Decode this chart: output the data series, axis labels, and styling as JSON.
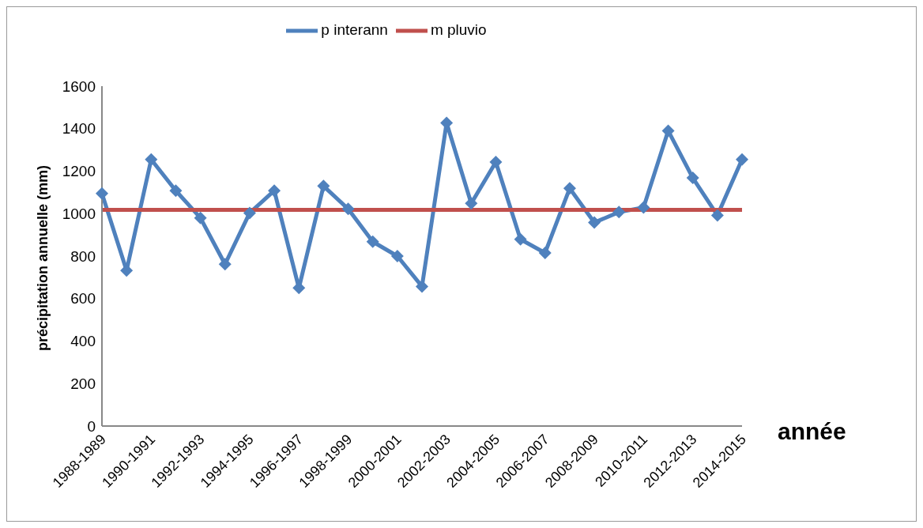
{
  "chart_data": {
    "type": "line",
    "xlabel": "année",
    "ylabel": "précipitation annuelle (mm)",
    "categories": [
      "1988-1989",
      null,
      "1990-1991",
      null,
      "1992-1993",
      null,
      "1994-1995",
      null,
      "1996-1997",
      null,
      "1998-1999",
      null,
      "2000-2001",
      null,
      "2002-2003",
      null,
      "2004-2005",
      null,
      "2006-2007",
      null,
      "2008-2009",
      null,
      "2010-2011",
      null,
      "2012-2013",
      null,
      "2014-2015"
    ],
    "series": [
      {
        "name": "p interann",
        "color": "#4f81bd",
        "marker": "diamond",
        "values": [
          1095,
          732,
          1255,
          1108,
          980,
          762,
          1003,
          1108,
          650,
          1130,
          1022,
          868,
          800,
          657,
          1427,
          1048,
          1243,
          879,
          815,
          1119,
          958,
          1007,
          1029,
          1390,
          1168,
          992,
          1255
        ]
      },
      {
        "name": "m pluvio",
        "color": "#c0504d",
        "marker": "none",
        "values": [
          1018,
          1018,
          1018,
          1018,
          1018,
          1018,
          1018,
          1018,
          1018,
          1018,
          1018,
          1018,
          1018,
          1018,
          1018,
          1018,
          1018,
          1018,
          1018,
          1018,
          1018,
          1018,
          1018,
          1018,
          1018,
          1018,
          1018
        ]
      }
    ],
    "ylim": [
      0,
      1600
    ],
    "yticks": [
      0,
      200,
      400,
      600,
      800,
      1000,
      1200,
      1400,
      1600
    ],
    "grid": false,
    "legend": "top",
    "line_style": "solid"
  }
}
